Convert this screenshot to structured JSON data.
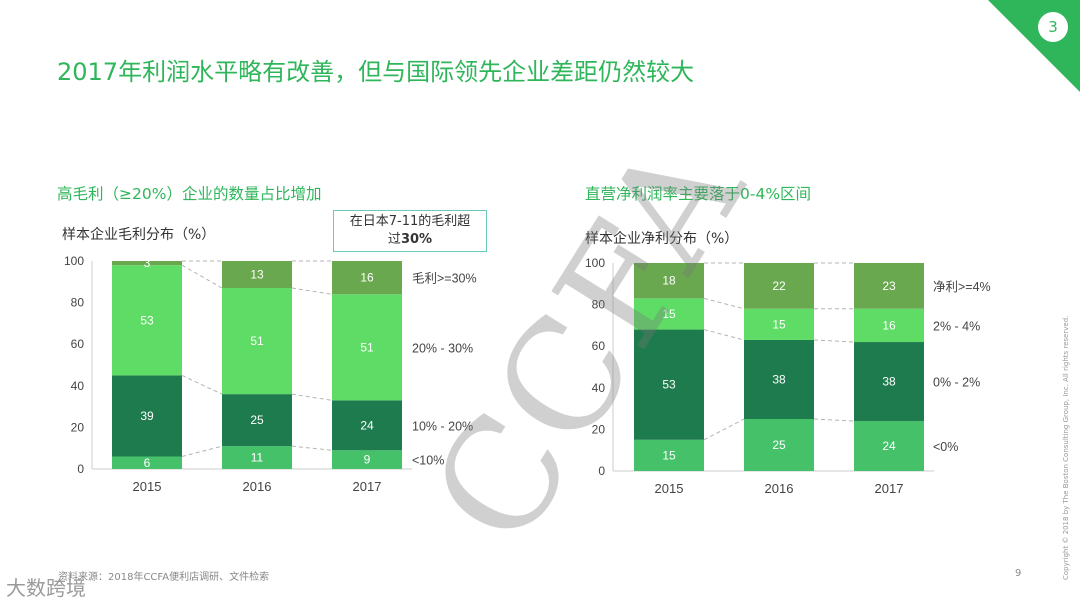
{
  "page": {
    "number_badge": "3",
    "title": "2017年利润水平略有改善，但与国际领先企业差距仍然较大",
    "footnote": "资料来源：2018年CCFA便利店调研、文件检索",
    "page_number": "9",
    "copyright": "Copyright © 2018 by The Boston Consulting Group, Inc. All rights reserved.",
    "watermark": "CCFA",
    "logo_text": "大数跨境"
  },
  "colors": {
    "dark": "#1e7b4e",
    "light": "#5fdc66",
    "olive": "#6aa84f",
    "mid": "#45c16a",
    "title_green": "#2fb65a"
  },
  "left": {
    "subtitle": "高毛利（≥20%）企业的数量占比增加",
    "caption": "样本企业毛利分布（%）",
    "callout_line1": "在日本7-11的毛利超",
    "callout_line2_prefix": "过",
    "callout_line2_bold": "30%"
  },
  "right": {
    "subtitle": "直营净利润率主要落于0-4%区间",
    "caption": "样本企业净利分布（%）"
  },
  "chart_data": [
    {
      "type": "bar",
      "stacked": true,
      "title": "样本企业毛利分布（%）",
      "categories": [
        "2015",
        "2016",
        "2017"
      ],
      "ylim": [
        0,
        100
      ],
      "yticks": [
        0,
        20,
        40,
        60,
        80,
        100
      ],
      "series": [
        {
          "name": "<10%",
          "values": [
            6,
            11,
            9
          ],
          "color": "#45c16a"
        },
        {
          "name": "10% - 20%",
          "values": [
            39,
            25,
            24
          ],
          "color": "#1e7b4e"
        },
        {
          "name": "20% - 30%",
          "values": [
            53,
            51,
            51
          ],
          "color": "#5fdc66"
        },
        {
          "name": "毛利>=30%",
          "values": [
            3,
            13,
            16
          ],
          "color": "#6aa84f"
        }
      ]
    },
    {
      "type": "bar",
      "stacked": true,
      "title": "样本企业净利分布（%）",
      "categories": [
        "2015",
        "2016",
        "2017"
      ],
      "ylim": [
        0,
        100
      ],
      "yticks": [
        0,
        20,
        40,
        60,
        80,
        100
      ],
      "series": [
        {
          "name": "<0%",
          "values": [
            15,
            25,
            24
          ],
          "color": "#45c16a"
        },
        {
          "name": "0% - 2%",
          "values": [
            53,
            38,
            38
          ],
          "color": "#1e7b4e"
        },
        {
          "name": "2% - 4%",
          "values": [
            15,
            15,
            16
          ],
          "color": "#5fdc66"
        },
        {
          "name": "净利>=4%",
          "values": [
            18,
            22,
            23
          ],
          "color": "#6aa84f"
        }
      ]
    }
  ]
}
